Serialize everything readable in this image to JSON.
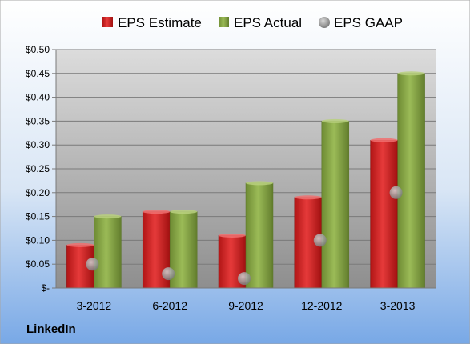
{
  "company": "LinkedIn",
  "colors": {
    "estimate": "#d42020",
    "actual": "#86a543",
    "gaap": "#9a9a9a",
    "background_top": "#ffffff",
    "background_bottom": "#78a8e6"
  },
  "chart_data": {
    "type": "bar",
    "categories": [
      "3-2012",
      "6-2012",
      "9-2012",
      "12-2012",
      "3-2013"
    ],
    "series": [
      {
        "name": "EPS Estimate",
        "kind": "bar",
        "values": [
          0.09,
          0.16,
          0.11,
          0.19,
          0.31
        ]
      },
      {
        "name": "EPS Actual",
        "kind": "bar",
        "values": [
          0.15,
          0.16,
          0.22,
          0.35,
          0.45
        ]
      },
      {
        "name": "EPS GAAP",
        "kind": "marker",
        "values": [
          0.05,
          0.03,
          0.02,
          0.1,
          0.2
        ]
      }
    ],
    "ylim": [
      0,
      0.5
    ],
    "yticks": [
      0,
      0.05,
      0.1,
      0.15,
      0.2,
      0.25,
      0.3,
      0.35,
      0.4,
      0.45,
      0.5
    ],
    "ytick_labels": [
      "$-",
      "$0.05",
      "$0.10",
      "$0.15",
      "$0.20",
      "$0.25",
      "$0.30",
      "$0.35",
      "$0.40",
      "$0.45",
      "$0.50"
    ],
    "legend_position": "top",
    "grid": true
  }
}
